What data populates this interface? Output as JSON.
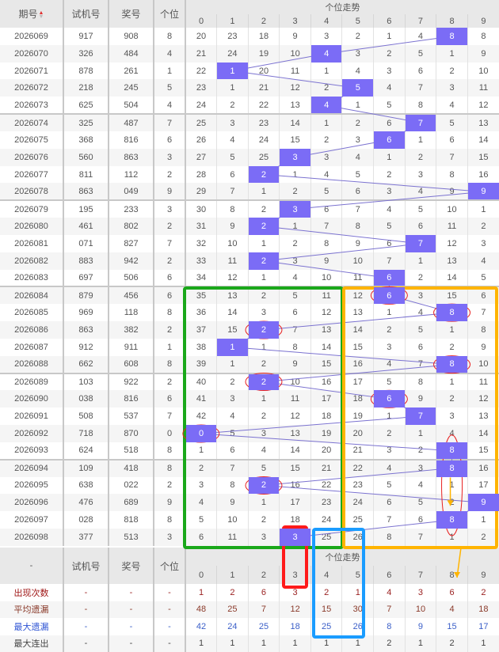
{
  "header": {
    "period": "期号",
    "sort_icon": "sort-arrows-icon",
    "test": "试机号",
    "prize": "奖号",
    "units": "个位",
    "trend": "个位走势",
    "digits": [
      "0",
      "1",
      "2",
      "3",
      "4",
      "5",
      "6",
      "7",
      "8",
      "9"
    ]
  },
  "rows": [
    {
      "period": "2026069",
      "test": "917",
      "prize": "908",
      "units": "8",
      "trend": [
        20,
        23,
        18,
        9,
        3,
        2,
        1,
        4,
        8,
        8
      ]
    },
    {
      "period": "2026070",
      "test": "326",
      "prize": "484",
      "units": "4",
      "trend": [
        21,
        24,
        19,
        10,
        4,
        3,
        2,
        5,
        1,
        9
      ]
    },
    {
      "period": "2026071",
      "test": "878",
      "prize": "261",
      "units": "1",
      "trend": [
        22,
        1,
        20,
        11,
        1,
        4,
        3,
        6,
        2,
        10
      ]
    },
    {
      "period": "2026072",
      "test": "218",
      "prize": "245",
      "units": "5",
      "trend": [
        23,
        1,
        21,
        12,
        2,
        5,
        4,
        7,
        3,
        11
      ]
    },
    {
      "period": "2026073",
      "test": "625",
      "prize": "504",
      "units": "4",
      "trend": [
        24,
        2,
        22,
        13,
        4,
        1,
        5,
        8,
        4,
        12
      ]
    },
    {
      "period": "2026074",
      "test": "325",
      "prize": "487",
      "units": "7",
      "trend": [
        25,
        3,
        23,
        14,
        1,
        2,
        6,
        7,
        5,
        13
      ]
    },
    {
      "period": "2026075",
      "test": "368",
      "prize": "816",
      "units": "6",
      "trend": [
        26,
        4,
        24,
        15,
        2,
        3,
        6,
        1,
        6,
        14
      ]
    },
    {
      "period": "2026076",
      "test": "560",
      "prize": "863",
      "units": "3",
      "trend": [
        27,
        5,
        25,
        3,
        3,
        4,
        1,
        2,
        7,
        15
      ]
    },
    {
      "period": "2026077",
      "test": "811",
      "prize": "112",
      "units": "2",
      "trend": [
        28,
        6,
        2,
        1,
        4,
        5,
        2,
        3,
        8,
        16
      ]
    },
    {
      "period": "2026078",
      "test": "863",
      "prize": "049",
      "units": "9",
      "trend": [
        29,
        7,
        1,
        2,
        5,
        6,
        3,
        4,
        9,
        9
      ]
    },
    {
      "period": "2026079",
      "test": "195",
      "prize": "233",
      "units": "3",
      "trend": [
        30,
        8,
        2,
        3,
        6,
        7,
        4,
        5,
        10,
        1
      ]
    },
    {
      "period": "2026080",
      "test": "461",
      "prize": "802",
      "units": "2",
      "trend": [
        31,
        9,
        2,
        1,
        7,
        8,
        5,
        6,
        11,
        2
      ]
    },
    {
      "period": "2026081",
      "test": "071",
      "prize": "827",
      "units": "7",
      "trend": [
        32,
        10,
        1,
        2,
        8,
        9,
        6,
        7,
        12,
        3
      ]
    },
    {
      "period": "2026082",
      "test": "883",
      "prize": "942",
      "units": "2",
      "trend": [
        33,
        11,
        2,
        3,
        9,
        10,
        7,
        1,
        13,
        4
      ]
    },
    {
      "period": "2026083",
      "test": "697",
      "prize": "506",
      "units": "6",
      "trend": [
        34,
        12,
        1,
        4,
        10,
        11,
        6,
        2,
        14,
        5
      ]
    },
    {
      "period": "2026084",
      "test": "879",
      "prize": "456",
      "units": "6",
      "trend": [
        35,
        13,
        2,
        5,
        11,
        12,
        6,
        3,
        15,
        6
      ]
    },
    {
      "period": "2026085",
      "test": "969",
      "prize": "118",
      "units": "8",
      "trend": [
        36,
        14,
        3,
        6,
        12,
        13,
        1,
        4,
        8,
        7
      ]
    },
    {
      "period": "2026086",
      "test": "863",
      "prize": "382",
      "units": "2",
      "trend": [
        37,
        15,
        2,
        7,
        13,
        14,
        2,
        5,
        1,
        8
      ]
    },
    {
      "period": "2026087",
      "test": "912",
      "prize": "911",
      "units": "1",
      "trend": [
        38,
        1,
        1,
        8,
        14,
        15,
        3,
        6,
        2,
        9
      ]
    },
    {
      "period": "2026088",
      "test": "662",
      "prize": "608",
      "units": "8",
      "trend": [
        39,
        1,
        2,
        9,
        15,
        16,
        4,
        7,
        8,
        10
      ]
    },
    {
      "period": "2026089",
      "test": "103",
      "prize": "922",
      "units": "2",
      "trend": [
        40,
        2,
        2,
        10,
        16,
        17,
        5,
        8,
        1,
        11
      ]
    },
    {
      "period": "2026090",
      "test": "038",
      "prize": "816",
      "units": "6",
      "trend": [
        41,
        3,
        1,
        11,
        17,
        18,
        6,
        9,
        2,
        12
      ]
    },
    {
      "period": "2026091",
      "test": "508",
      "prize": "537",
      "units": "7",
      "trend": [
        42,
        4,
        2,
        12,
        18,
        19,
        1,
        7,
        3,
        13
      ]
    },
    {
      "period": "2026092",
      "test": "718",
      "prize": "870",
      "units": "0",
      "trend": [
        0,
        5,
        3,
        13,
        19,
        20,
        2,
        1,
        4,
        14
      ]
    },
    {
      "period": "2026093",
      "test": "624",
      "prize": "518",
      "units": "8",
      "trend": [
        1,
        6,
        4,
        14,
        20,
        21,
        3,
        2,
        8,
        15
      ]
    },
    {
      "period": "2026094",
      "test": "109",
      "prize": "418",
      "units": "8",
      "trend": [
        2,
        7,
        5,
        15,
        21,
        22,
        4,
        3,
        8,
        16
      ]
    },
    {
      "period": "2026095",
      "test": "638",
      "prize": "022",
      "units": "2",
      "trend": [
        3,
        8,
        2,
        16,
        22,
        23,
        5,
        4,
        1,
        17
      ]
    },
    {
      "period": "2026096",
      "test": "476",
      "prize": "689",
      "units": "9",
      "trend": [
        4,
        9,
        1,
        17,
        23,
        24,
        6,
        5,
        2,
        9
      ]
    },
    {
      "period": "2026097",
      "test": "028",
      "prize": "818",
      "units": "8",
      "trend": [
        5,
        10,
        2,
        18,
        24,
        25,
        7,
        6,
        8,
        1
      ]
    },
    {
      "period": "2026098",
      "test": "377",
      "prize": "513",
      "units": "3",
      "trend": [
        6,
        11,
        3,
        3,
        25,
        26,
        8,
        7,
        1,
        2
      ]
    }
  ],
  "footer": {
    "header": {
      "label": "-",
      "test": "试机号",
      "prize": "奖号",
      "units": "个位",
      "trend": "个位走势",
      "digits": [
        "0",
        "1",
        "2",
        "3",
        "4",
        "5",
        "6",
        "7",
        "8",
        "9"
      ]
    },
    "stats": [
      {
        "label": "出现次数",
        "test": "-",
        "prize": "-",
        "units": "-",
        "values": [
          1,
          2,
          6,
          3,
          2,
          1,
          4,
          3,
          6,
          2
        ]
      },
      {
        "label": "平均遗漏",
        "test": "-",
        "prize": "-",
        "units": "-",
        "values": [
          48,
          25,
          7,
          12,
          15,
          30,
          7,
          10,
          4,
          18
        ]
      },
      {
        "label": "最大遗漏",
        "test": "-",
        "prize": "-",
        "units": "-",
        "values": [
          42,
          24,
          25,
          18,
          25,
          26,
          8,
          9,
          15,
          17
        ]
      },
      {
        "label": "最大连出",
        "test": "-",
        "prize": "-",
        "units": "-",
        "values": [
          1,
          1,
          1,
          1,
          1,
          1,
          2,
          1,
          2,
          1
        ]
      }
    ]
  },
  "colors": {
    "hit": "#7b6cf6",
    "trend_line": "#7b72d0",
    "green_box": "#1aa81a",
    "orange_box": "#ffb400",
    "red_box": "#ff1a1a",
    "blue_box": "#1a9cff",
    "circle": "#e82020"
  }
}
